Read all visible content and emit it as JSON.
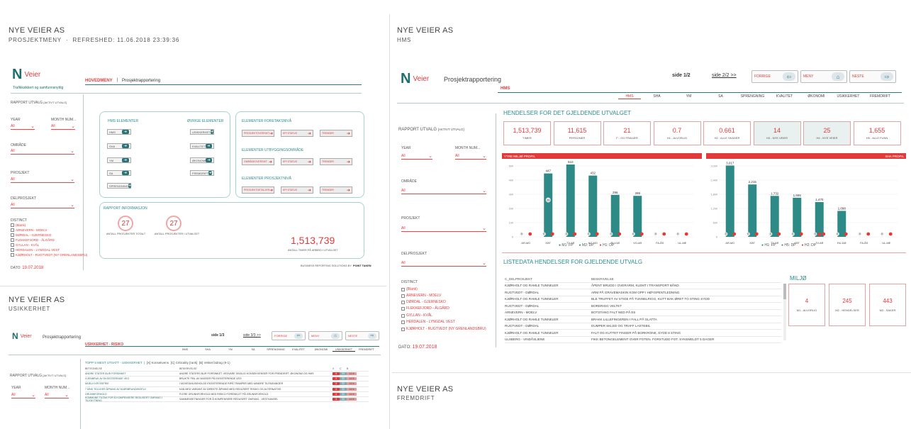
{
  "tile1": {
    "org": "NYE VEIER AS",
    "subtitle": "PROSJEKTMENY",
    "refreshed": "REFRESHED: 11.06.2018 23:39:36",
    "logo": "Nye",
    "logo_w": "Veier",
    "tagline": "Trafikksikkert og samfunnsnyttig",
    "menu_active": "HOVEDMENY",
    "menu_sep": "|",
    "menu_item": "Prosjektrapportering",
    "rapport_utvalg": "RAPPORT UTVALG",
    "rapport_hint": "[AKTIVT UTVALG]",
    "year_label": "YEAR",
    "month_label": "MONTH NUM...",
    "all": "All",
    "omrade": "OMRÅDE",
    "prosjekt": "PROSJEKT",
    "delprosjekt": "DELPROSJEKT",
    "distinct": "DISTINCT",
    "distinct_items": [
      "(Blank)",
      "ARNEVERN - MOELV",
      "DØRDAL - GJERNESKO",
      "FLEKKEFJORD - ÅLGÅRD",
      "GYLLAN - KVÅL",
      "HERDALEN - LYNGDAL VEST",
      "KJØRHOLT - RUGTVEDT (NY GRENLANDSBRU)"
    ],
    "dato_label": "DATO:",
    "dato": "19.07.2018",
    "hms_title": "HMS ELEMENTER",
    "hms_items": [
      "HMS",
      "SHA",
      "YM",
      "SA",
      "SPRENGNING"
    ],
    "ovrige_title": "ØVRIGE ELEMENTER",
    "ovrige_items": [
      "USIKKERHET",
      "KVALITET",
      "ØKONOMI",
      "FREMDRIFT"
    ],
    "foretak_title": "ELEMENTER FORETAKSNIVÅ",
    "utbygg_title": "ELEMENTER UTBYGGINGSOMRÅDE",
    "prosjnivaa_title": "ELEMENTER PROSJEKTNIVÅ",
    "foretak_btns": [
      "PROSJEKTOVERSIKT",
      "KPI STATUS",
      "TRENDER"
    ],
    "utbygg_btns": [
      "OMRÅDEOVERSIKT",
      "KPI STATUS",
      "TRENDER"
    ],
    "prosj_btns": [
      "PROSJEKTDETALJER",
      "KPI STATUS",
      "TRENDER"
    ],
    "rapport_info": "RAPPORT INFORMASJON",
    "antall_totalt": "27",
    "antall_totalt_lbl": "ANTALL PROSJEKTER TOTALT",
    "antall_utvalg": "27",
    "antall_utvalg_lbl": "ANTALL PROSJEKTER I UTVALGET",
    "timer": "1,513,739",
    "timer_lbl": "ANTALL TIMER PÅ ARBEID I UTVALGET",
    "footer": "BUSINESS REPORTING SOLUTIONS BY",
    "footer_brand": "POINT TAKEN"
  },
  "tile2": {
    "org": "NYE VEIER AS",
    "subtitle": "HMS",
    "logo_w": "Veier",
    "title": "Prosjektrapportering",
    "section": "HMS",
    "side": "side 1/2",
    "next_side": "side 2/2 >>",
    "nav": [
      "FORRIGE",
      "MENY",
      "NESTE"
    ],
    "tabs": [
      "HMS",
      "SHA",
      "YM",
      "SA",
      "SPRENGNING",
      "KVALITET",
      "ØKONOMI",
      "USIKKERHET",
      "FREMDRIFT"
    ],
    "hendelser_title": "HENDELSER FOR DET GJELDENDE UTVALGET",
    "kpis": [
      {
        "v": "1,513,739",
        "l": "TIMER"
      },
      {
        "v": "11,615",
        "l": "PERSONER"
      },
      {
        "v": "21",
        "l": "F - OG FRAVÆR"
      },
      {
        "v": "0.7",
        "l": "H1 - ALVORLIG"
      },
      {
        "v": "0.661",
        "l": "H2 - ALLE SKADER"
      },
      {
        "v": "14",
        "l": "H3 - NYE VEIER"
      },
      {
        "v": "25",
        "l": "H4 - NYE VEIER"
      },
      {
        "v": "1,655",
        "l": "H5 - ALLE FUNN"
      }
    ],
    "ytre_label": "YTRE MILJØ PROFIL",
    "sha_label": "SHA PROFIL",
    "rapport_utvalg": "RAPPORT UTVALG",
    "rapport_hint": "[AKTIVT UTVALG]",
    "year_label": "YEAR",
    "month_label": "MONTH NUM...",
    "all": "All",
    "omrade": "OMRÅDE",
    "prosjekt": "PROSJEKT",
    "delprosjekt": "DELPROSJEKT",
    "distinct": "DISTINCT",
    "distinct_items": [
      "(Blank)",
      "ARNEVERN - MOELV",
      "DØRDAL - GJERNESKO",
      "FLEKKEFJORD - ÅLGÅRD",
      "GYLLAN - KVÅL",
      "HERDALEN - LYNGDAL VEST",
      "KJØRHOLT - RUGTVEDT (NY GRENLANDSBRU)"
    ],
    "dato_label": "DATO:",
    "dato": "19.07.2018",
    "legend1": [
      "M1: FP",
      "M2: DP",
      "H1: DP"
    ],
    "legend2": [
      "H1: FP",
      "H5: DP",
      "H2: DP"
    ],
    "liste_title": "LISTEDATA HENDELSER FOR GJELDENDE UTVALG",
    "col1": "C_DELPROSJEKT",
    "col2": "BESKRIVELSE",
    "rows": [
      [
        "KJØRHOLT OG RAMLE TUNNELER",
        "ÅPENT BRUDD I OVERARM, KLEMT I TRANSPORT BÅND"
      ],
      [
        "RUGTVEDT - DØRDAL",
        "ARM PÅ GRAVEMASKIN KOM OPP I HØYSPENTLEDNING"
      ],
      [
        "KJØRHOLT OG RAMLE TUNNELER",
        "BLE TRUFFET AV STIGE PÅ TUNNELRIGG, KUTT BAK ØRET TO STING SYDD"
      ],
      [
        "RUGTVEDT - DØRDAL",
        "BORERIGG VELTET"
      ],
      [
        "ARNEVERN - MOELV",
        "BOTSTANG FALT NED PÅ E6"
      ],
      [
        "KJØRHOLT OG RAMLE TUNNELER",
        "BRAKK LILLEFINGEREN I FALL PÅ GLATTA"
      ],
      [
        "RUGTVEDT - DØRDAL",
        "DUMPER SKLED OG TRAFF LASTEBIL"
      ],
      [
        "KJØRHOLT OG RAMLE TUNNELER",
        "FALT OG KUTTET FINGER PÅ BORKRONE, SYDD 8 STING"
      ],
      [
        "ULSBERG - VINDÅSLIENE",
        "FIKK BETONGELEMENT OVER FOTEN. FORSTUDD FOT. SYKEMELDT 5 DAGER"
      ]
    ],
    "miljo": "MILJØ",
    "miljo_kpis": [
      {
        "v": "4",
        "l": "M1 - ALVORLIG"
      },
      {
        "v": "245",
        "l": "M2 - HENDELSER"
      },
      {
        "v": "443",
        "l": "M3 - SAKER"
      }
    ]
  },
  "tile3": {
    "org": "NYE VEIER AS",
    "subtitle": "USIKKERHET",
    "logo_w": "Veier",
    "title": "Prosjektrapportering",
    "section": "USIKKERHET - RISIKO",
    "side": "side 1/3",
    "next_side": "side 3/3 >>",
    "nav": [
      "FORRIGE",
      "MENY",
      "NESTE"
    ],
    "tabs": [
      "HMS",
      "SHA",
      "YM",
      "SA",
      "SPRENGNING",
      "KVALITET",
      "ØKONOMI",
      "USIKKERHET",
      "FREMDRIFT"
    ],
    "top5": "TOPP 5 MEST UTSATT - USIKKERHET",
    "kons": "[X] Konsekvens",
    "crit": "[C] Criticality [rank]",
    "bidrag": "[B] Vektet bidrag (9-1)",
    "col1": "BETEGNELSE",
    "col2": "BESKRIVELSE",
    "rapport_utvalg": "RAPPORT UTVALG",
    "rapport_hint": "[AKTIVT UTVALG]",
    "year_label": "YEAR",
    "month_label": "MONTH NUM...",
    "all": "All",
    "rows": [
      [
        "ANDRE STATER BLIR FORSINKET",
        "ANDRE STATERS BLIR FORSINKET. VEDVARE SKIDLIG KONSEKVENSER FOR FREMDRIFT, ØKONOMI OG HMS",
        "4",
        "24",
        "12.5"
      ],
      [
        "GJENBRUK AV EKSISTERENDE VEG",
        "BRUKTE FEIL AV MASSER PÅ EKSISTERENDE VEG",
        "3",
        "22",
        "12.5"
      ],
      [
        "MOELV KRYSSFRIE",
        "I MOVEDAN BEHOLDE EKSISTERENDE RIPÅ TRAMPER MED MINDRE TILPASNINGER",
        "3",
        "22",
        "12.5"
      ],
      [
        "7 MND TIDLIGER ÅPNING AV MJØSBRUND/MOELV",
        "KAN MED VARIANT AV DIREKTE ÅPNING MED REDUSERT RISIKO OG ALTERNATIVE",
        "3",
        "22",
        "12.5"
      ],
      [
        "GRUNNFORHOLD",
        "FLERE GRUNNFORHOLD MED RISIKO FORENKLET PÅ GRUNNFORHOLD",
        "4",
        "22",
        "12.5"
      ],
      [
        "KOMMUNE TILTAK FOR Å KOMPENSERE REDUSERT OMFANG I TILKNYTNING",
        "SAMMENSETNINGER FOR Å KOMPENSERE REDUSERT OMFANG - VESTHANSEL",
        "3",
        "22",
        "12.5"
      ]
    ]
  },
  "tile4": {
    "org": "NYE VEIER AS",
    "subtitle": "FREMDRIFT"
  },
  "chart_data": [
    {
      "type": "bar",
      "title": "YTRE MILJØ PROFIL",
      "categories": [
        "AR-MO",
        "KBT",
        "TV-AR",
        "KO-MO",
        "RU-DØ",
        "VO-AR",
        "FA-ÅS",
        "UL-ME"
      ],
      "series": [
        {
          "name": "M1: FP",
          "values": [
            0,
            447,
            510,
            432,
            296,
            289,
            0,
            0
          ]
        },
        {
          "name": "M2: DP",
          "values": [
            0,
            26,
            0,
            0,
            0,
            0,
            0,
            0
          ]
        },
        {
          "name": "H1: DP",
          "values": [
            0,
            0,
            0,
            0,
            0,
            0,
            0,
            0
          ]
        }
      ],
      "ylim": [
        0,
        500
      ]
    },
    {
      "type": "bar",
      "title": "SHA PROFIL",
      "categories": [
        "AR-MO",
        "KBT",
        "TV-AR",
        "KBT",
        "TV-AR",
        "RU-DØ",
        "FA-ÅS",
        "UL-ME"
      ],
      "series": [
        {
          "name": "H1: FP",
          "values": [
            3017,
            2215,
            1732,
            1655,
            1470,
            1098,
            0,
            0
          ]
        },
        {
          "name": "H5: DP",
          "values": [
            0,
            0,
            0,
            0,
            0,
            0,
            0,
            0
          ]
        },
        {
          "name": "H2: DP",
          "values": [
            0,
            0,
            0,
            0,
            1.0,
            0,
            0,
            0
          ]
        }
      ],
      "ylim": [
        0,
        3000
      ]
    }
  ]
}
